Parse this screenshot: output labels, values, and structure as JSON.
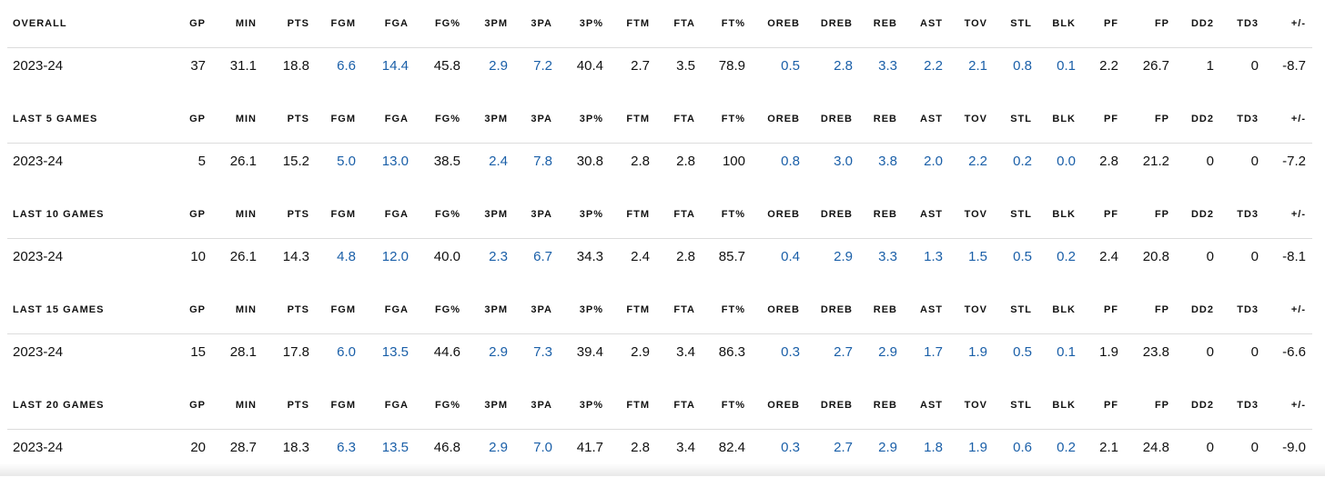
{
  "columns": [
    "GP",
    "MIN",
    "PTS",
    "FGM",
    "FGA",
    "FG%",
    "3PM",
    "3PA",
    "3P%",
    "FTM",
    "FTA",
    "FT%",
    "OREB",
    "DREB",
    "REB",
    "AST",
    "TOV",
    "STL",
    "BLK",
    "PF",
    "FP",
    "DD2",
    "TD3",
    "+/-"
  ],
  "link_columns": [
    "FGM",
    "FGA",
    "3PM",
    "3PA",
    "OREB",
    "DREB",
    "REB",
    "AST",
    "TOV",
    "STL",
    "BLK"
  ],
  "link_color": "#1a5fa8",
  "sections": [
    {
      "title": "OVERALL",
      "season": "2023-24",
      "values": [
        "37",
        "31.1",
        "18.8",
        "6.6",
        "14.4",
        "45.8",
        "2.9",
        "7.2",
        "40.4",
        "2.7",
        "3.5",
        "78.9",
        "0.5",
        "2.8",
        "3.3",
        "2.2",
        "2.1",
        "0.8",
        "0.1",
        "2.2",
        "26.7",
        "1",
        "0",
        "-8.7"
      ]
    },
    {
      "title": "LAST 5 GAMES",
      "season": "2023-24",
      "values": [
        "5",
        "26.1",
        "15.2",
        "5.0",
        "13.0",
        "38.5",
        "2.4",
        "7.8",
        "30.8",
        "2.8",
        "2.8",
        "100",
        "0.8",
        "3.0",
        "3.8",
        "2.0",
        "2.2",
        "0.2",
        "0.0",
        "2.8",
        "21.2",
        "0",
        "0",
        "-7.2"
      ]
    },
    {
      "title": "LAST 10 GAMES",
      "season": "2023-24",
      "values": [
        "10",
        "26.1",
        "14.3",
        "4.8",
        "12.0",
        "40.0",
        "2.3",
        "6.7",
        "34.3",
        "2.4",
        "2.8",
        "85.7",
        "0.4",
        "2.9",
        "3.3",
        "1.3",
        "1.5",
        "0.5",
        "0.2",
        "2.4",
        "20.8",
        "0",
        "0",
        "-8.1"
      ]
    },
    {
      "title": "LAST 15 GAMES",
      "season": "2023-24",
      "values": [
        "15",
        "28.1",
        "17.8",
        "6.0",
        "13.5",
        "44.6",
        "2.9",
        "7.3",
        "39.4",
        "2.9",
        "3.4",
        "86.3",
        "0.3",
        "2.7",
        "2.9",
        "1.7",
        "1.9",
        "0.5",
        "0.1",
        "1.9",
        "23.8",
        "0",
        "0",
        "-6.6"
      ]
    },
    {
      "title": "LAST 20 GAMES",
      "season": "2023-24",
      "values": [
        "20",
        "28.7",
        "18.3",
        "6.3",
        "13.5",
        "46.8",
        "2.9",
        "7.0",
        "41.7",
        "2.8",
        "3.4",
        "82.4",
        "0.3",
        "2.7",
        "2.9",
        "1.8",
        "1.9",
        "0.6",
        "0.2",
        "2.1",
        "24.8",
        "0",
        "0",
        "-9.0"
      ]
    }
  ]
}
